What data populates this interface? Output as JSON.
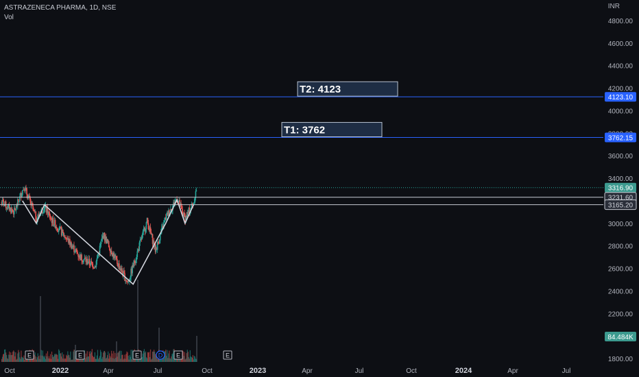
{
  "header": {
    "symbol_line": "ASTRAZENECA PHARMA, 1D, NSE",
    "volume_label": "Vol"
  },
  "price_axis": {
    "unit": "INR",
    "ticks": [
      "4800.00",
      "4600.00",
      "4400.00",
      "4200.00",
      "4000.00",
      "3800.00",
      "3600.00",
      "3400.00",
      "3200.00",
      "3000.00",
      "2800.00",
      "2600.00",
      "2400.00",
      "2200.00",
      "2000.00",
      "1800.00"
    ]
  },
  "time_axis": {
    "labels": [
      "Oct",
      "2022",
      "Apr",
      "Jul",
      "Oct",
      "2023",
      "Apr",
      "Jul",
      "Oct",
      "2024",
      "Apr",
      "Jul"
    ],
    "bold": [
      "2022",
      "2023",
      "2024"
    ]
  },
  "colors": {
    "background": "#0d0f14",
    "up": "#26a69a",
    "down": "#ef5350",
    "target_line": "#2962ff",
    "target_badge": "#2962ff",
    "pattern": "#d1d4dc",
    "current_price_badge": "#3c9a8f",
    "volume_badge": "#3c9a8f"
  },
  "targets": [
    {
      "label": "T2: 4123",
      "price": 4123.1,
      "badge": "4123.10"
    },
    {
      "label": "T1: 3762",
      "price": 3762.15,
      "badge": "3762.15"
    }
  ],
  "levels": [
    {
      "name": "current-price",
      "price": 3316.9,
      "badge": "3316.90"
    },
    {
      "name": "resistance-upper",
      "price": 3231.6,
      "badge": "3231.60"
    },
    {
      "name": "resistance-lower",
      "price": 3165.2,
      "badge": "3165.20"
    }
  ],
  "volume_badge": "84.484K",
  "events": [
    {
      "label": "E",
      "type": "earnings"
    },
    {
      "label": "E",
      "type": "earnings"
    },
    {
      "label": "E",
      "type": "earnings"
    },
    {
      "label": "D",
      "type": "dividend"
    },
    {
      "label": "E",
      "type": "earnings"
    },
    {
      "label": "E",
      "type": "earnings"
    }
  ],
  "chart_data": {
    "type": "candlestick",
    "title": "ASTRAZENECA PHARMA, 1D, NSE",
    "ylabel": "INR",
    "ylim": [
      1800,
      4900
    ],
    "pattern": "inverse head and shoulders",
    "pattern_points": [
      {
        "date": "2021-10-25",
        "price": 3200
      },
      {
        "date": "2021-11-20",
        "price": 3000
      },
      {
        "date": "2021-12-05",
        "price": 3165
      },
      {
        "date": "2022-05-20",
        "price": 2460
      },
      {
        "date": "2022-07-20",
        "price": 3000
      },
      {
        "date": "2022-08-10",
        "price": 3210
      },
      {
        "date": "2022-08-25",
        "price": 3000
      },
      {
        "date": "2022-09-10",
        "price": 3165
      }
    ],
    "price_path": [
      {
        "date": "2021-09-15",
        "price": 3190
      },
      {
        "date": "2021-10-10",
        "price": 3100
      },
      {
        "date": "2021-10-28",
        "price": 3330
      },
      {
        "date": "2021-11-20",
        "price": 3040
      },
      {
        "date": "2021-12-05",
        "price": 3150
      },
      {
        "date": "2021-12-20",
        "price": 3020
      },
      {
        "date": "2022-01-15",
        "price": 2870
      },
      {
        "date": "2022-02-10",
        "price": 2700
      },
      {
        "date": "2022-03-10",
        "price": 2620
      },
      {
        "date": "2022-03-25",
        "price": 2900
      },
      {
        "date": "2022-04-15",
        "price": 2700
      },
      {
        "date": "2022-05-10",
        "price": 2470
      },
      {
        "date": "2022-05-25",
        "price": 2700
      },
      {
        "date": "2022-06-15",
        "price": 3020
      },
      {
        "date": "2022-07-01",
        "price": 2760
      },
      {
        "date": "2022-07-20",
        "price": 3050
      },
      {
        "date": "2022-08-10",
        "price": 3220
      },
      {
        "date": "2022-08-25",
        "price": 3040
      },
      {
        "date": "2022-09-10",
        "price": 3190
      },
      {
        "date": "2022-09-16",
        "price": 3316.9
      }
    ]
  }
}
